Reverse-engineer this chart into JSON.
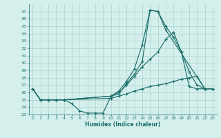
{
  "xlabel": "Humidex (Indice chaleur)",
  "xlim": [
    -0.5,
    23.5
  ],
  "ylim": [
    23,
    38
  ],
  "yticks": [
    23,
    24,
    25,
    26,
    27,
    28,
    29,
    30,
    31,
    32,
    33,
    34,
    35,
    36,
    37
  ],
  "xticks": [
    0,
    1,
    2,
    3,
    4,
    5,
    6,
    7,
    8,
    9,
    10,
    11,
    12,
    13,
    14,
    15,
    16,
    17,
    18,
    19,
    20,
    21,
    22,
    23
  ],
  "bg_color": "#d4efec",
  "grid_color": "#b0d8d4",
  "line_color": "#1a6e6a",
  "series": [
    {
      "x": [
        0,
        1,
        2,
        3,
        4,
        5,
        6,
        7,
        8,
        9,
        10,
        11,
        12,
        13,
        14,
        15,
        16,
        17,
        18,
        19,
        20,
        21,
        22,
        23
      ],
      "y": [
        26.5,
        25.0,
        25.0,
        25.0,
        25.0,
        24.5,
        23.5,
        23.2,
        23.2,
        23.2,
        25.5,
        25.8,
        27.2,
        28.5,
        30.2,
        37.2,
        37.0,
        35.0,
        33.5,
        31.5,
        28.8,
        27.0,
        26.5,
        26.5
      ]
    },
    {
      "x": [
        0,
        1,
        2,
        3,
        4,
        10,
        11,
        12,
        13,
        14,
        15,
        16,
        17,
        22,
        23
      ],
      "y": [
        26.5,
        25.0,
        25.0,
        25.0,
        25.0,
        25.5,
        26.2,
        27.5,
        29.2,
        32.5,
        37.2,
        37.0,
        34.5,
        26.5,
        26.5
      ]
    },
    {
      "x": [
        0,
        1,
        2,
        3,
        4,
        10,
        11,
        12,
        13,
        14,
        15,
        16,
        17,
        18,
        19,
        20,
        21,
        22,
        23
      ],
      "y": [
        26.5,
        25.0,
        25.0,
        25.0,
        25.0,
        25.5,
        26.0,
        27.0,
        28.2,
        29.5,
        30.5,
        31.5,
        33.2,
        34.2,
        31.5,
        26.8,
        26.5,
        26.5,
        26.5
      ]
    },
    {
      "x": [
        0,
        1,
        2,
        3,
        4,
        10,
        11,
        12,
        13,
        14,
        15,
        16,
        17,
        18,
        19,
        20,
        21,
        22,
        23
      ],
      "y": [
        26.5,
        25.0,
        25.0,
        25.0,
        25.0,
        25.2,
        25.5,
        25.8,
        26.2,
        26.5,
        26.8,
        27.0,
        27.2,
        27.5,
        27.8,
        28.0,
        28.2,
        26.5,
        26.5
      ]
    }
  ]
}
